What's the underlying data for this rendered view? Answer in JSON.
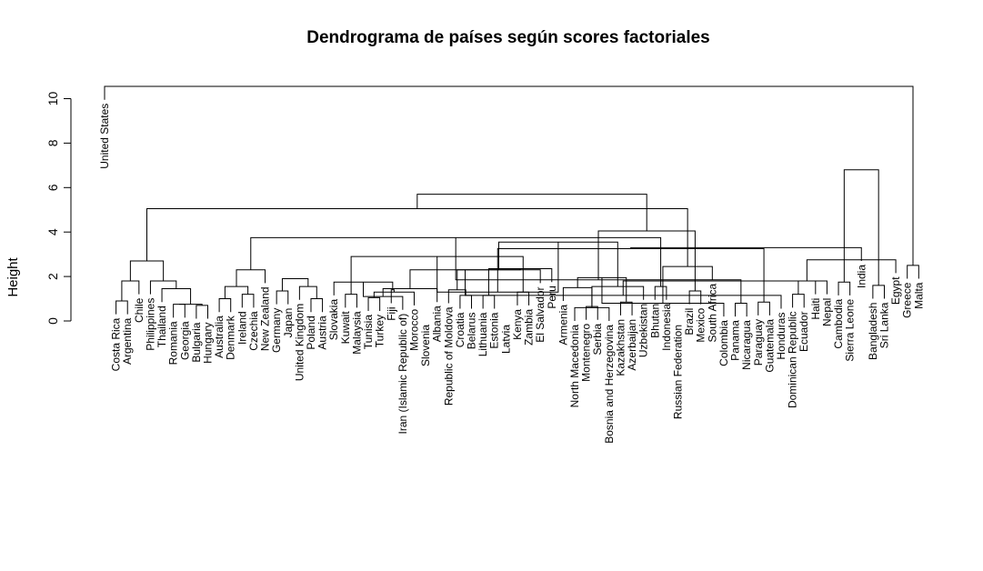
{
  "chart_data": {
    "type": "dendrogram",
    "title": "Dendrograma de países según scores factoriales",
    "ylabel": "Height",
    "ylim": [
      0,
      11.1
    ],
    "yticks": [
      0,
      2,
      4,
      6,
      8,
      10
    ],
    "leaves": [
      "United States",
      "Costa Rica",
      "Argentina",
      "Chile",
      "Philippines",
      "Thailand",
      "Romania",
      "Georgia",
      "Bulgaria",
      "Hungary",
      "Australia",
      "Denmark",
      "Ireland",
      "Czechia",
      "New Zealand",
      "Germany",
      "Japan",
      "United Kingdom",
      "Poland",
      "Austria",
      "Slovakia",
      "Kuwait",
      "Malaysia",
      "Tunisia",
      "Turkey",
      "Fiji",
      "Iran (Islamic Republic of)",
      "Morocco",
      "Slovenia",
      "Albania",
      "Republic of Moldova",
      "Croatia",
      "Belarus",
      "Lithuania",
      "Estonia",
      "Latvia",
      "Kenya",
      "Zambia",
      "El Salvador",
      "Peru",
      "Armenia",
      "North Macedonia",
      "Montenegro",
      "Serbia",
      "Bosnia and Herzegovina",
      "Kazakhstan",
      "Azerbaijan",
      "Uzbekistan",
      "Bhutan",
      "Indonesia",
      "Russian Federation",
      "Brazil",
      "Mexico",
      "South Africa",
      "Colombia",
      "Panama",
      "Nicaragua",
      "Paraguay",
      "Guatemala",
      "Honduras",
      "Dominican Republic",
      "Ecuador",
      "Haiti",
      "Nepal",
      "Cambodia",
      "Sierra Leone",
      "India",
      "Bangladesh",
      "Sri Lanka",
      "Egypt",
      "Greece",
      "Malta"
    ],
    "merges": [
      [
        1,
        2,
        0.9
      ],
      [
        3,
        -1,
        1.8
      ],
      [
        6,
        7,
        0.75
      ],
      [
        8,
        9,
        0.7
      ],
      [
        -3,
        -4,
        0.75
      ],
      [
        5,
        -5,
        1.45
      ],
      [
        4,
        -6,
        1.8
      ],
      [
        10,
        11,
        1.0
      ],
      [
        12,
        13,
        1.2
      ],
      [
        -8,
        -9,
        1.55
      ],
      [
        15,
        16,
        1.35
      ],
      [
        18,
        19,
        1.0
      ],
      [
        17,
        -12,
        1.55
      ],
      [
        -13,
        -11,
        1.9
      ],
      [
        14,
        -10,
        2.3
      ],
      [
        -2,
        -7,
        2.7
      ],
      [
        23,
        24,
        1.05
      ],
      [
        -17,
        27,
        1.3
      ],
      [
        -18,
        25,
        1.4
      ],
      [
        21,
        22,
        1.2
      ],
      [
        20,
        -19,
        1.75
      ],
      [
        26,
        -21,
        1.1
      ],
      [
        31,
        32,
        1.15
      ],
      [
        33,
        34,
        1.15
      ],
      [
        30,
        -23,
        1.4
      ],
      [
        -22,
        29,
        1.45
      ],
      [
        36,
        37,
        1.3
      ],
      [
        -25,
        38,
        2.3
      ],
      [
        39,
        -24,
        2.35
      ],
      [
        42,
        43,
        0.65
      ],
      [
        41,
        44,
        0.6
      ],
      [
        45,
        46,
        0.85
      ],
      [
        40,
        -30,
        1.5
      ],
      [
        -31,
        47,
        1.55
      ],
      [
        48,
        49,
        1.55
      ],
      [
        -32,
        -33,
        1.95
      ],
      [
        -29,
        -26,
        2.3
      ],
      [
        -27,
        -20,
        2.9
      ],
      [
        -28,
        -34,
        3.55
      ],
      [
        -15,
        -35,
        3.75
      ],
      [
        55,
        56,
        0.8
      ],
      [
        54,
        -36,
        0.8
      ],
      [
        57,
        58,
        0.85
      ],
      [
        -37,
        59,
        1.15
      ],
      [
        60,
        61,
        1.2
      ],
      [
        -38,
        -39,
        1.3
      ],
      [
        51,
        52,
        1.35
      ],
      [
        -40,
        -41,
        1.85
      ],
      [
        -42,
        53,
        2.45
      ],
      [
        64,
        65,
        1.75
      ],
      [
        63,
        -44,
        1.8
      ],
      [
        62,
        -45,
        1.8
      ],
      [
        -46,
        -43,
        3.25
      ],
      [
        -47,
        -48,
        4.05
      ],
      [
        -16,
        -49,
        5.05
      ],
      [
        67,
        68,
        1.6
      ],
      [
        70,
        71,
        2.5
      ],
      [
        69,
        -52,
        2.75
      ],
      [
        66,
        -53,
        3.3
      ],
      [
        -55,
        -54,
        5.7
      ],
      [
        -50,
        -56,
        6.8
      ],
      [
        0,
        -57,
        10.55
      ]
    ]
  }
}
